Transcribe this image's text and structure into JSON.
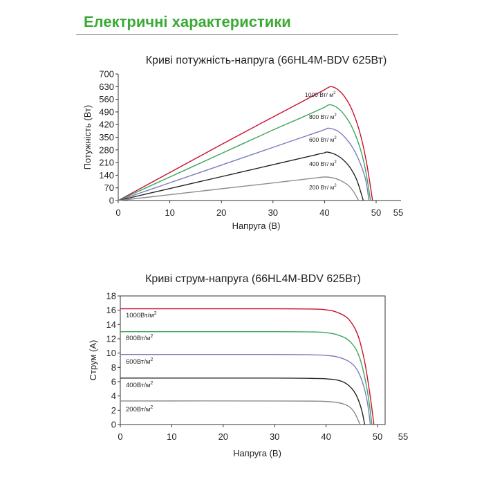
{
  "header": {
    "title": "Електричні характеристики"
  },
  "chart_data": [
    {
      "type": "line",
      "title": "Криві потужність-напруга (66HL4M-BDV 625Вт)",
      "xlabel": "Напруга (В)",
      "ylabel": "Потужність (Вт)",
      "xlim": [
        0,
        55
      ],
      "ylim": [
        0,
        700
      ],
      "xticks": [
        "0",
        "10",
        "20",
        "30",
        "40",
        "50",
        "55"
      ],
      "yticks": [
        "0",
        "70",
        "140",
        "210",
        "280",
        "350",
        "420",
        "490",
        "560",
        "630",
        "700"
      ],
      "grid": false,
      "series": [
        {
          "name": "1000 Вт/ м",
          "name_sup": "2",
          "color": "#c8102e",
          "voc": 49.3,
          "vmp": 41.2,
          "peak": 630,
          "x": [
            0,
            10,
            20,
            30,
            35,
            38,
            40,
            41.2,
            42.5,
            44,
            45.5,
            47,
            48.2,
            49.3
          ],
          "y": [
            0,
            155,
            310,
            462,
            537,
            583,
            613,
            630,
            615,
            570,
            490,
            360,
            200,
            0
          ]
        },
        {
          "name": "800 Вт/ м",
          "name_sup": "2",
          "color": "#3aa65a",
          "voc": 48.9,
          "vmp": 41.0,
          "peak": 530,
          "x": [
            0,
            10,
            20,
            30,
            35,
            38,
            40,
            41.0,
            42.5,
            44,
            45.5,
            47,
            48,
            48.9
          ],
          "y": [
            0,
            130,
            260,
            390,
            452,
            490,
            516,
            530,
            512,
            468,
            395,
            280,
            160,
            0
          ]
        },
        {
          "name": "600 Вт/ м",
          "name_sup": "2",
          "color": "#7b7bbf",
          "voc": 48.6,
          "vmp": 40.8,
          "peak": 400,
          "x": [
            0,
            10,
            20,
            30,
            35,
            38,
            40,
            40.8,
            42.5,
            44,
            45.5,
            47,
            48,
            48.6
          ],
          "y": [
            0,
            98,
            196,
            294,
            343,
            372,
            392,
            400,
            385,
            348,
            290,
            200,
            110,
            0
          ]
        },
        {
          "name": "400 Вт/ м",
          "name_sup": "2",
          "color": "#222222",
          "voc": 47.5,
          "vmp": 40.5,
          "peak": 268,
          "x": [
            0,
            10,
            20,
            30,
            35,
            38,
            40,
            40.5,
            42,
            43.5,
            45,
            46.3,
            47.5
          ],
          "y": [
            0,
            66,
            132,
            198,
            231,
            251,
            264,
            268,
            256,
            228,
            180,
            110,
            0
          ]
        },
        {
          "name": "200 Вт/ м",
          "name_sup": "2",
          "color": "#8c8c8c",
          "voc": 46.6,
          "vmp": 40.0,
          "peak": 130,
          "x": [
            0,
            10,
            20,
            30,
            35,
            38,
            40,
            41.5,
            43,
            44.5,
            45.6,
            46.6
          ],
          "y": [
            0,
            32,
            65,
            97,
            114,
            124,
            130,
            126,
            112,
            86,
            50,
            0
          ]
        }
      ]
    },
    {
      "type": "line",
      "title": "Криві струм-напруга (66HL4M-BDV 625Вт)",
      "xlabel": "Напруга (В)",
      "ylabel": "Струм (А)",
      "xlim": [
        0,
        55
      ],
      "ylim": [
        0,
        18
      ],
      "xticks": [
        "0",
        "10",
        "20",
        "30",
        "40",
        "50",
        "55"
      ],
      "yticks": [
        "0",
        "2",
        "4",
        "6",
        "8",
        "10",
        "12",
        "14",
        "16",
        "18"
      ],
      "grid": false,
      "series": [
        {
          "name": "1000Вт/м",
          "name_sup": "2",
          "color": "#c8102e",
          "x": [
            0,
            30,
            38,
            40,
            42,
            44,
            45.5,
            46.5,
            47.5,
            48.2,
            48.8,
            49.3
          ],
          "y": [
            16.2,
            16.2,
            16.15,
            16.05,
            15.75,
            15.0,
            13.6,
            11.8,
            8.8,
            5.8,
            2.8,
            0
          ]
        },
        {
          "name": "800Вт/м",
          "name_sup": "2",
          "color": "#3aa65a",
          "x": [
            0,
            30,
            38,
            40,
            42,
            44,
            45.5,
            46.5,
            47.3,
            48,
            48.5,
            48.9
          ],
          "y": [
            13.0,
            13.0,
            12.95,
            12.85,
            12.6,
            12.0,
            10.9,
            9.4,
            7.3,
            4.8,
            2.4,
            0
          ]
        },
        {
          "name": "600Вт/м",
          "name_sup": "2",
          "color": "#7b7bbf",
          "x": [
            0,
            30,
            38,
            40,
            42,
            44,
            45.5,
            46.5,
            47.3,
            47.9,
            48.3,
            48.6
          ],
          "y": [
            9.8,
            9.8,
            9.75,
            9.68,
            9.5,
            9.0,
            8.2,
            7.0,
            5.4,
            3.6,
            1.8,
            0
          ]
        },
        {
          "name": "400Вт/м",
          "name_sup": "2",
          "color": "#222222",
          "x": [
            0,
            30,
            38,
            40,
            42,
            43.5,
            44.8,
            45.8,
            46.6,
            47.1,
            47.5
          ],
          "y": [
            6.5,
            6.5,
            6.45,
            6.4,
            6.25,
            5.9,
            5.2,
            4.2,
            2.8,
            1.5,
            0
          ]
        },
        {
          "name": "200Вт/м",
          "name_sup": "2",
          "color": "#8c8c8c",
          "x": [
            0,
            30,
            38,
            40,
            42,
            43.5,
            44.6,
            45.4,
            46.0,
            46.6
          ],
          "y": [
            3.3,
            3.3,
            3.27,
            3.22,
            3.1,
            2.85,
            2.45,
            1.8,
            1.0,
            0
          ]
        }
      ]
    }
  ]
}
